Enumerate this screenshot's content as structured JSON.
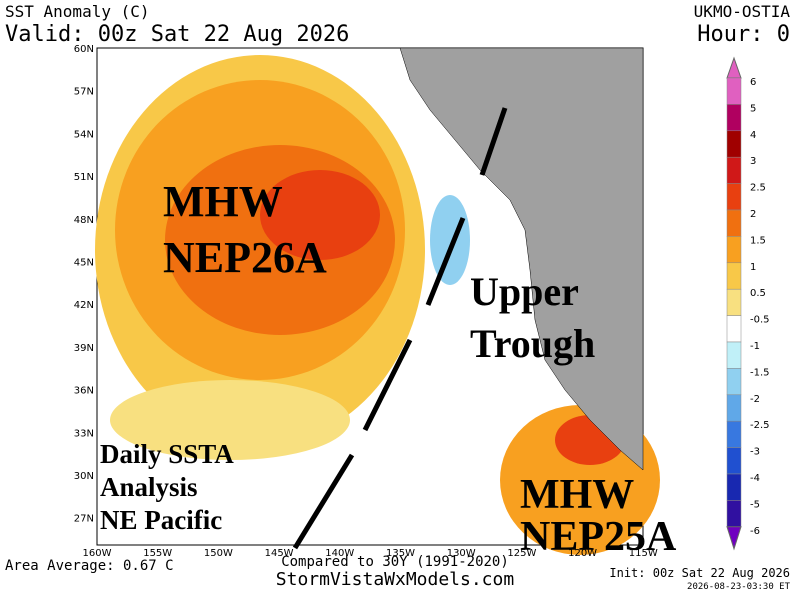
{
  "header": {
    "title": "SST Anomaly (C)",
    "valid": "Valid: 00z Sat 22 Aug 2026",
    "source": "UKMO-OSTIA",
    "hour": "Hour: 0"
  },
  "lat_labels": [
    "60N",
    "57N",
    "54N",
    "51N",
    "48N",
    "45N",
    "42N",
    "39N",
    "36N",
    "33N",
    "30N",
    "27N"
  ],
  "lon_labels": [
    "160W",
    "155W",
    "150W",
    "145W",
    "140W",
    "135W",
    "130W",
    "125W",
    "120W",
    "115W"
  ],
  "colorbar": [
    {
      "label": "6",
      "color": "#e060c0"
    },
    {
      "label": "5",
      "color": "#b00060"
    },
    {
      "label": "4",
      "color": "#a00000"
    },
    {
      "label": "3",
      "color": "#d01818"
    },
    {
      "label": "2.5",
      "color": "#e84010"
    },
    {
      "label": "2",
      "color": "#f07010"
    },
    {
      "label": "1.5",
      "color": "#f8a020"
    },
    {
      "label": "1",
      "color": "#f8c848"
    },
    {
      "label": "0.5",
      "color": "#f8e080"
    },
    {
      "label": "-0.5",
      "color": "#ffffff"
    },
    {
      "label": "-1",
      "color": "#c0f0f8"
    },
    {
      "label": "-1.5",
      "color": "#90d0f0"
    },
    {
      "label": "-2",
      "color": "#60a8e8"
    },
    {
      "label": "-2.5",
      "color": "#3878e0"
    },
    {
      "label": "-3",
      "color": "#2050d0"
    },
    {
      "label": "-4",
      "color": "#1828b0"
    },
    {
      "label": "-5",
      "color": "#3010a0"
    },
    {
      "label": "-6",
      "color": "#7000c0"
    }
  ],
  "annotations": {
    "mhw_west": [
      "MHW",
      "NEP26A"
    ],
    "trough": [
      "Upper",
      "Trough"
    ],
    "analysis": [
      "Daily SSTA",
      "Analysis",
      "NE Pacific"
    ],
    "mhw_south": [
      "MHW",
      "NEP25A"
    ]
  },
  "footer": {
    "average": "Area Average: 0.67 C",
    "compared": "Compared to 30Y (1991-2020)",
    "site": "StormVistaWxModels.com",
    "init": "Init: 00z Sat 22 Aug 2026",
    "timestamp": "2026-08-23-03:30 ET"
  }
}
